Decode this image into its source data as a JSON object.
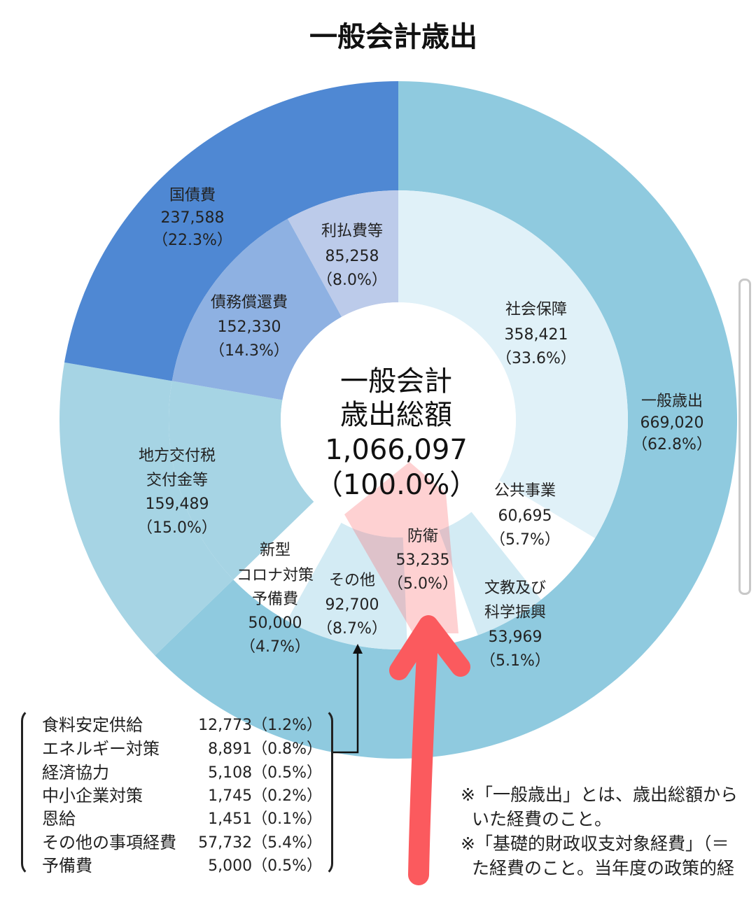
{
  "chart_data": {
    "type": "pie",
    "title": "一般会計歳出",
    "center": {
      "line1": "一般会計",
      "line2": "歳出総額",
      "value": "1,066,097",
      "pct": "（100.0%）"
    },
    "outer_ring": [
      {
        "name": "国債費",
        "value": 237588,
        "value_label": "237,588",
        "pct": "（22.3%）",
        "color": "#4f88d3"
      },
      {
        "name": "一般歳出",
        "value": 669020,
        "value_label": "669,020",
        "pct": "（62.8%）",
        "color": "#8fcadf"
      },
      {
        "name": "",
        "value": 159489,
        "value_label": "",
        "pct": "",
        "color": "#a6d4e4"
      }
    ],
    "inner_ring": [
      {
        "name": "社会保障",
        "value": 358421,
        "value_label": "358,421",
        "pct": "（33.6%）",
        "color": "#e0f1f8"
      },
      {
        "name": "公共事業",
        "value": 60695,
        "value_label": "60,695",
        "pct": "（5.7%）",
        "color": "#ffffff"
      },
      {
        "name": "文教及び科学振興",
        "value": 53969,
        "value_label": "53,969",
        "pct": "（5.1%）",
        "color": "#d3ebf4"
      },
      {
        "name": "防衛",
        "value": 53235,
        "value_label": "53,235",
        "pct": "（5.0%）",
        "color": "#ffffff"
      },
      {
        "name": "その他",
        "value": 92700,
        "value_label": "92,700",
        "pct": "（8.7%）",
        "color": "#d3ebf4"
      },
      {
        "name": "新型コロナ対策予備費",
        "value": 50000,
        "value_label": "50,000",
        "pct": "（4.7%）",
        "color": "#ffffff"
      },
      {
        "name": "地方交付税交付金等",
        "value": 159489,
        "value_label": "159,489",
        "pct": "（15.0%）",
        "color": "#a6d4e4"
      },
      {
        "name": "債務償還費",
        "value": 152330,
        "value_label": "152,330",
        "pct": "（14.3%）",
        "color": "#8eb1e2"
      },
      {
        "name": "利払費等",
        "value": 85258,
        "value_label": "85,258",
        "pct": "（8.0%）",
        "color": "#bccbea"
      }
    ],
    "labels": {
      "kokusaihi": {
        "l1": "国債費",
        "v": "237,588",
        "p": "（22.3%）"
      },
      "ippan": {
        "l1": "一般歳出",
        "v": "669,020",
        "p": "（62.8%）"
      },
      "riharai": {
        "l1": "利払費等",
        "v": "85,258",
        "p": "（8.0%）"
      },
      "saimu": {
        "l1": "債務償還費",
        "v": "152,330",
        "p": "（14.3%）"
      },
      "shakai": {
        "l1": "社会保障",
        "v": "358,421",
        "p": "（33.6%）"
      },
      "chiho": {
        "l1": "地方交付税",
        "l2": "交付金等",
        "v": "159,489",
        "p": "（15.0%）"
      },
      "koukyou": {
        "l1": "公共事業",
        "v": "60,695",
        "p": "（5.7%）"
      },
      "bouei": {
        "l1": "防衛",
        "v": "53,235",
        "p": "（5.0%）"
      },
      "bunkyo": {
        "l1": "文教及び",
        "l2": "科学振興",
        "v": "53,969",
        "p": "（5.1%）"
      },
      "sonota": {
        "l1": "その他",
        "v": "92,700",
        "p": "（8.7%）"
      },
      "corona": {
        "l1": "新型",
        "l2": "コロナ対策",
        "l3": "予備費",
        "v": "50,000",
        "p": "（4.7%）"
      }
    },
    "highlight_color": "#fb5a5e"
  },
  "breakdown": [
    {
      "name": "食料安定供給",
      "value": "12,773（1.2%）"
    },
    {
      "name": "エネルギー対策",
      "value": "8,891（0.8%）"
    },
    {
      "name": "経済協力",
      "value": "5,108（0.5%）"
    },
    {
      "name": "中小企業対策",
      "value": "1,745（0.2%）"
    },
    {
      "name": "恩給",
      "value": "1,451（0.1%）"
    },
    {
      "name": "その他の事項経費",
      "value": "57,732（5.4%）"
    },
    {
      "name": "予備費",
      "value": "5,000（0.5%）"
    }
  ],
  "notes": [
    "※「一般歳出」とは、歳出総額から",
    "いた経費のこと。",
    "※「基礎的財政収支対象経費」（＝",
    "た経費のこと。当年度の政策的経"
  ]
}
